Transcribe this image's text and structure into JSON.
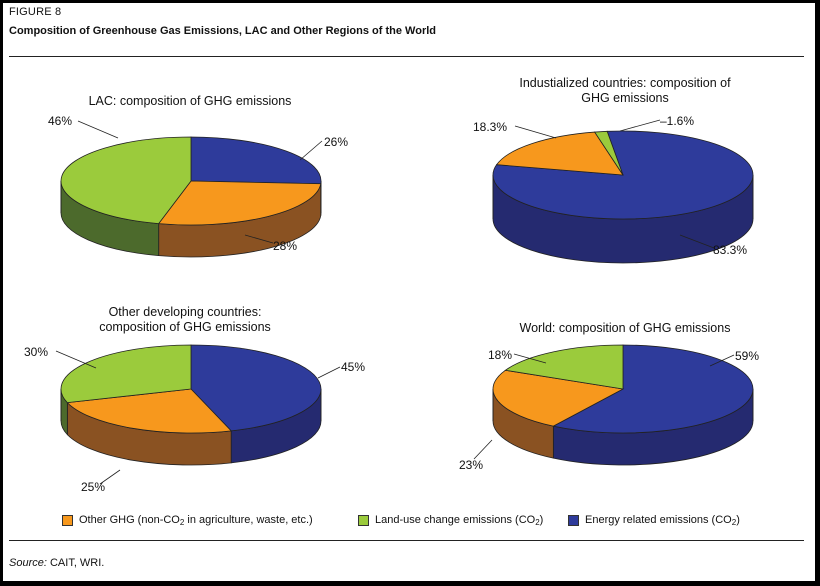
{
  "figure_label": "FIGURE 8",
  "title": "Composition of Greenhouse Gas Emissions, LAC and Other Regions of the World",
  "colors": {
    "other_ghg": "#f7981d",
    "land_use": "#9bcb3c",
    "energy": "#2e3b9b",
    "frame": "#000000"
  },
  "legend": [
    {
      "key": "other_ghg",
      "pre": "Other GHG (non-CO",
      "sub": "2",
      "post": " in agriculture, waste, etc.)"
    },
    {
      "key": "land_use",
      "pre": "Land-use change emissions (CO",
      "sub": "2",
      "post": ")"
    },
    {
      "key": "energy",
      "pre": "Energy related emissions (CO",
      "sub": "2",
      "post": ")"
    }
  ],
  "source": {
    "lead": "Source:",
    "text": " CAIT, WRI."
  },
  "chart_data": [
    {
      "type": "pie",
      "title": "LAC: composition of GHG emissions",
      "slices": [
        {
          "label": "Energy related emissions",
          "key": "energy",
          "value": 26,
          "text": "26%"
        },
        {
          "label": "Other GHG",
          "key": "other_ghg",
          "value": 28,
          "text": "28%"
        },
        {
          "label": "Land-use change emissions",
          "key": "land_use",
          "value": 46,
          "text": "46%"
        }
      ]
    },
    {
      "type": "pie",
      "title": "Industialized countries: composition of GHG emissions",
      "slices": [
        {
          "label": "Energy related emissions",
          "key": "energy",
          "value": 83.3,
          "text": "83.3%"
        },
        {
          "label": "Other GHG",
          "key": "other_ghg",
          "value": 18.3,
          "text": "18.3%"
        },
        {
          "label": "Land-use change emissions",
          "key": "land_use",
          "value": -1.6,
          "text": "–1.6%"
        }
      ]
    },
    {
      "type": "pie",
      "title": "Other developing countries: composition of GHG emissions",
      "slices": [
        {
          "label": "Energy related emissions",
          "key": "energy",
          "value": 45,
          "text": "45%"
        },
        {
          "label": "Other GHG",
          "key": "other_ghg",
          "value": 25,
          "text": "25%"
        },
        {
          "label": "Land-use change emissions",
          "key": "land_use",
          "value": 30,
          "text": "30%"
        }
      ]
    },
    {
      "type": "pie",
      "title": "World: composition of GHG emissions",
      "slices": [
        {
          "label": "Energy related emissions",
          "key": "energy",
          "value": 59,
          "text": "59%"
        },
        {
          "label": "Other GHG",
          "key": "other_ghg",
          "value": 23,
          "text": "23%"
        },
        {
          "label": "Land-use change emissions",
          "key": "land_use",
          "value": 18,
          "text": "18%"
        }
      ]
    }
  ]
}
